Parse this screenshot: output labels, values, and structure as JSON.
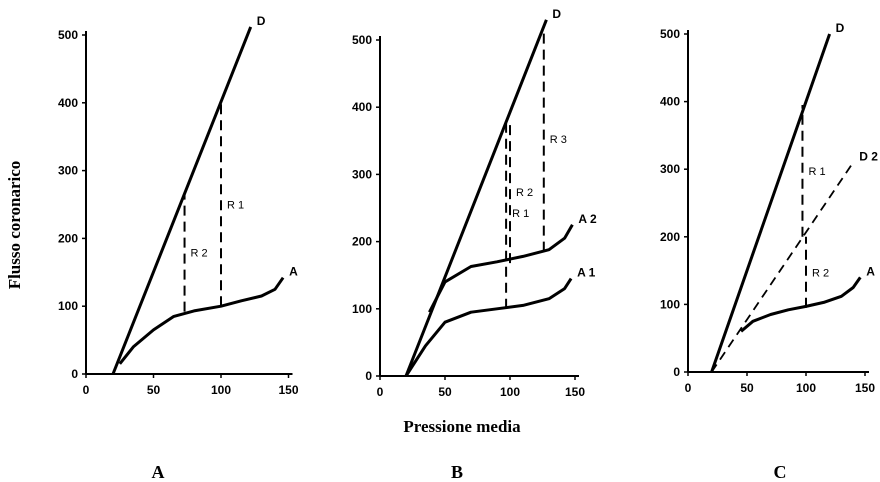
{
  "figure": {
    "ylabel": "Flusso coronarico",
    "xlabel": "Pressione media"
  },
  "chart_data": [
    {
      "type": "line",
      "panel_label": "A",
      "xlim": [
        0,
        150
      ],
      "ylim": [
        0,
        500
      ],
      "x_ticks": [
        "0",
        "50",
        "100",
        "150"
      ],
      "y_ticks": [
        "0",
        "100",
        "200",
        "300",
        "400",
        "500"
      ],
      "series": [
        {
          "name": "D",
          "style": "solid",
          "points": [
            [
              20,
              0
            ],
            [
              122,
              512
            ]
          ]
        },
        {
          "name": "A",
          "style": "solid",
          "points": [
            [
              25,
              15
            ],
            [
              35,
              40
            ],
            [
              50,
              65
            ],
            [
              65,
              85
            ],
            [
              80,
              93
            ],
            [
              100,
              100
            ],
            [
              115,
              108
            ],
            [
              130,
              115
            ],
            [
              140,
              125
            ],
            [
              146,
              142
            ]
          ]
        }
      ],
      "annotations": [
        {
          "label": "R 2",
          "style": "dashed",
          "x": 73,
          "y": [
            92,
            267
          ]
        },
        {
          "label": "R 1",
          "style": "dashed",
          "x": 100,
          "y": [
            100,
            400
          ]
        }
      ]
    },
    {
      "type": "line",
      "panel_label": "B",
      "xlim": [
        0,
        150
      ],
      "ylim": [
        0,
        500
      ],
      "x_ticks": [
        "0",
        "50",
        "100",
        "150"
      ],
      "y_ticks": [
        "0",
        "100",
        "200",
        "300",
        "400",
        "500"
      ],
      "series": [
        {
          "name": "D",
          "style": "solid",
          "points": [
            [
              20,
              0
            ],
            [
              128,
              530
            ]
          ]
        },
        {
          "name": "A 2",
          "style": "solid",
          "points": [
            [
              38,
              95
            ],
            [
              50,
              140
            ],
            [
              70,
              163
            ],
            [
              90,
              170
            ],
            [
              110,
              178
            ],
            [
              130,
              188
            ],
            [
              142,
              205
            ],
            [
              148,
              225
            ]
          ]
        },
        {
          "name": "A 1",
          "style": "solid",
          "points": [
            [
              20,
              0
            ],
            [
              35,
              45
            ],
            [
              50,
              80
            ],
            [
              70,
              95
            ],
            [
              90,
              100
            ],
            [
              110,
              105
            ],
            [
              130,
              115
            ],
            [
              142,
              130
            ],
            [
              147,
              145
            ]
          ]
        }
      ],
      "annotations": [
        {
          "label": "R 1",
          "style": "dashed",
          "x": 97,
          "y": [
            100,
            385
          ]
        },
        {
          "label": "R 2",
          "style": "dashed",
          "x": 100,
          "y": [
            168,
            380
          ]
        },
        {
          "label": "R 3",
          "style": "dashed",
          "x": 126,
          "y": [
            185,
            520
          ]
        }
      ]
    },
    {
      "type": "line",
      "panel_label": "C",
      "xlim": [
        0,
        150
      ],
      "ylim": [
        0,
        500
      ],
      "x_ticks": [
        "0",
        "50",
        "100",
        "150"
      ],
      "y_ticks": [
        "0",
        "100",
        "200",
        "300",
        "400",
        "500"
      ],
      "series": [
        {
          "name": "D",
          "style": "solid",
          "points": [
            [
              20,
              0
            ],
            [
              120,
              500
            ]
          ]
        },
        {
          "name": "D 2",
          "style": "dashed",
          "points": [
            [
              20,
              0
            ],
            [
              140,
              310
            ]
          ]
        },
        {
          "name": "A",
          "style": "solid",
          "points": [
            [
              45,
              60
            ],
            [
              55,
              75
            ],
            [
              70,
              85
            ],
            [
              85,
              92
            ],
            [
              100,
              97
            ],
            [
              115,
              103
            ],
            [
              130,
              112
            ],
            [
              140,
              125
            ],
            [
              146,
              140
            ]
          ]
        }
      ],
      "annotations": [
        {
          "label": "R 1",
          "style": "dashed",
          "x": 97,
          "y": [
            200,
            395
          ]
        },
        {
          "label": "R 2",
          "style": "dashed",
          "x": 100,
          "y": [
            95,
            200
          ]
        }
      ]
    }
  ]
}
